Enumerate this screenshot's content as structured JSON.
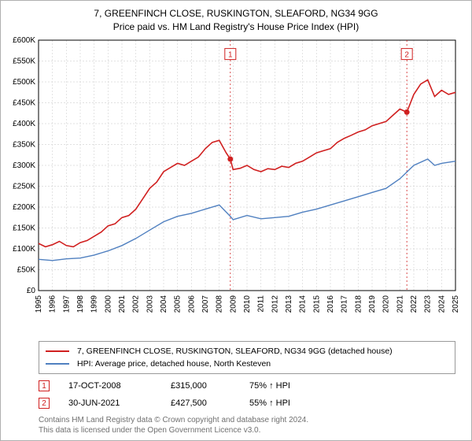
{
  "title_line1": "7, GREENFINCH CLOSE, RUSKINGTON, SLEAFORD, NG34 9GG",
  "title_line2": "Price paid vs. HM Land Registry's House Price Index (HPI)",
  "chart": {
    "type": "line",
    "background_color": "#ffffff",
    "grid_color": "#d8d8d8",
    "grid_dash": "2,2",
    "axis_color": "#000000",
    "label_fontsize": 10,
    "xlim": [
      1995,
      2025
    ],
    "ylim": [
      0,
      600000
    ],
    "ytick_step": 50000,
    "yticks": [
      "£0",
      "£50K",
      "£100K",
      "£150K",
      "£200K",
      "£250K",
      "£300K",
      "£350K",
      "£400K",
      "£450K",
      "£500K",
      "£550K",
      "£600K"
    ],
    "xticks": [
      1995,
      1996,
      1997,
      1998,
      1999,
      2000,
      2001,
      2002,
      2003,
      2004,
      2005,
      2006,
      2007,
      2008,
      2009,
      2010,
      2011,
      2012,
      2013,
      2014,
      2015,
      2016,
      2017,
      2018,
      2019,
      2020,
      2021,
      2022,
      2023,
      2024,
      2025
    ],
    "series": [
      {
        "name": "property",
        "color": "#d02020",
        "width": 1.6,
        "data": [
          [
            1995,
            113000
          ],
          [
            1995.5,
            105000
          ],
          [
            1996,
            110000
          ],
          [
            1996.5,
            118000
          ],
          [
            1997,
            108000
          ],
          [
            1997.5,
            105000
          ],
          [
            1998,
            115000
          ],
          [
            1998.5,
            120000
          ],
          [
            1999,
            130000
          ],
          [
            1999.5,
            140000
          ],
          [
            2000,
            155000
          ],
          [
            2000.5,
            160000
          ],
          [
            2001,
            175000
          ],
          [
            2001.5,
            180000
          ],
          [
            2002,
            195000
          ],
          [
            2002.5,
            220000
          ],
          [
            2003,
            245000
          ],
          [
            2003.5,
            260000
          ],
          [
            2004,
            285000
          ],
          [
            2004.5,
            295000
          ],
          [
            2005,
            305000
          ],
          [
            2005.5,
            300000
          ],
          [
            2006,
            310000
          ],
          [
            2006.5,
            320000
          ],
          [
            2007,
            340000
          ],
          [
            2007.5,
            355000
          ],
          [
            2008,
            360000
          ],
          [
            2008.5,
            330000
          ],
          [
            2008.8,
            315000
          ],
          [
            2009,
            290000
          ],
          [
            2009.5,
            293000
          ],
          [
            2010,
            300000
          ],
          [
            2010.5,
            290000
          ],
          [
            2011,
            285000
          ],
          [
            2011.5,
            292000
          ],
          [
            2012,
            290000
          ],
          [
            2012.5,
            298000
          ],
          [
            2013,
            295000
          ],
          [
            2013.5,
            305000
          ],
          [
            2014,
            310000
          ],
          [
            2014.5,
            320000
          ],
          [
            2015,
            330000
          ],
          [
            2015.5,
            335000
          ],
          [
            2016,
            340000
          ],
          [
            2016.5,
            355000
          ],
          [
            2017,
            365000
          ],
          [
            2017.5,
            372000
          ],
          [
            2018,
            380000
          ],
          [
            2018.5,
            385000
          ],
          [
            2019,
            395000
          ],
          [
            2019.5,
            400000
          ],
          [
            2020,
            405000
          ],
          [
            2020.5,
            420000
          ],
          [
            2021,
            435000
          ],
          [
            2021.5,
            427500
          ],
          [
            2022,
            470000
          ],
          [
            2022.5,
            495000
          ],
          [
            2023,
            505000
          ],
          [
            2023.5,
            465000
          ],
          [
            2024,
            480000
          ],
          [
            2024.5,
            470000
          ],
          [
            2025,
            475000
          ]
        ]
      },
      {
        "name": "hpi",
        "color": "#5080c0",
        "width": 1.4,
        "data": [
          [
            1995,
            75000
          ],
          [
            1996,
            72000
          ],
          [
            1997,
            76000
          ],
          [
            1998,
            78000
          ],
          [
            1999,
            85000
          ],
          [
            2000,
            95000
          ],
          [
            2001,
            108000
          ],
          [
            2002,
            125000
          ],
          [
            2003,
            145000
          ],
          [
            2004,
            165000
          ],
          [
            2005,
            178000
          ],
          [
            2006,
            185000
          ],
          [
            2007,
            195000
          ],
          [
            2008,
            205000
          ],
          [
            2008.8,
            178000
          ],
          [
            2009,
            170000
          ],
          [
            2010,
            180000
          ],
          [
            2011,
            172000
          ],
          [
            2012,
            175000
          ],
          [
            2013,
            178000
          ],
          [
            2014,
            188000
          ],
          [
            2015,
            195000
          ],
          [
            2016,
            205000
          ],
          [
            2017,
            215000
          ],
          [
            2018,
            225000
          ],
          [
            2019,
            235000
          ],
          [
            2020,
            245000
          ],
          [
            2021,
            268000
          ],
          [
            2022,
            300000
          ],
          [
            2023,
            315000
          ],
          [
            2023.5,
            300000
          ],
          [
            2024,
            305000
          ],
          [
            2025,
            310000
          ]
        ]
      }
    ],
    "markers": [
      {
        "num": "1",
        "x": 2008.8,
        "y_top": 580000,
        "color": "#d02020",
        "dot_y": 315000
      },
      {
        "num": "2",
        "x": 2021.5,
        "y_top": 580000,
        "color": "#d02020",
        "dot_y": 427500
      }
    ]
  },
  "legend": {
    "items": [
      {
        "color": "#d02020",
        "label": "7, GREENFINCH CLOSE, RUSKINGTON, SLEAFORD, NG34 9GG (detached house)"
      },
      {
        "color": "#5080c0",
        "label": "HPI: Average price, detached house, North Kesteven"
      }
    ]
  },
  "sales": [
    {
      "num": "1",
      "color": "#d02020",
      "date": "17-OCT-2008",
      "price": "£315,000",
      "hpi": "75% ↑ HPI"
    },
    {
      "num": "2",
      "color": "#d02020",
      "date": "30-JUN-2021",
      "price": "£427,500",
      "hpi": "55% ↑ HPI"
    }
  ],
  "footer_line1": "Contains HM Land Registry data © Crown copyright and database right 2024.",
  "footer_line2": "This data is licensed under the Open Government Licence v3.0."
}
